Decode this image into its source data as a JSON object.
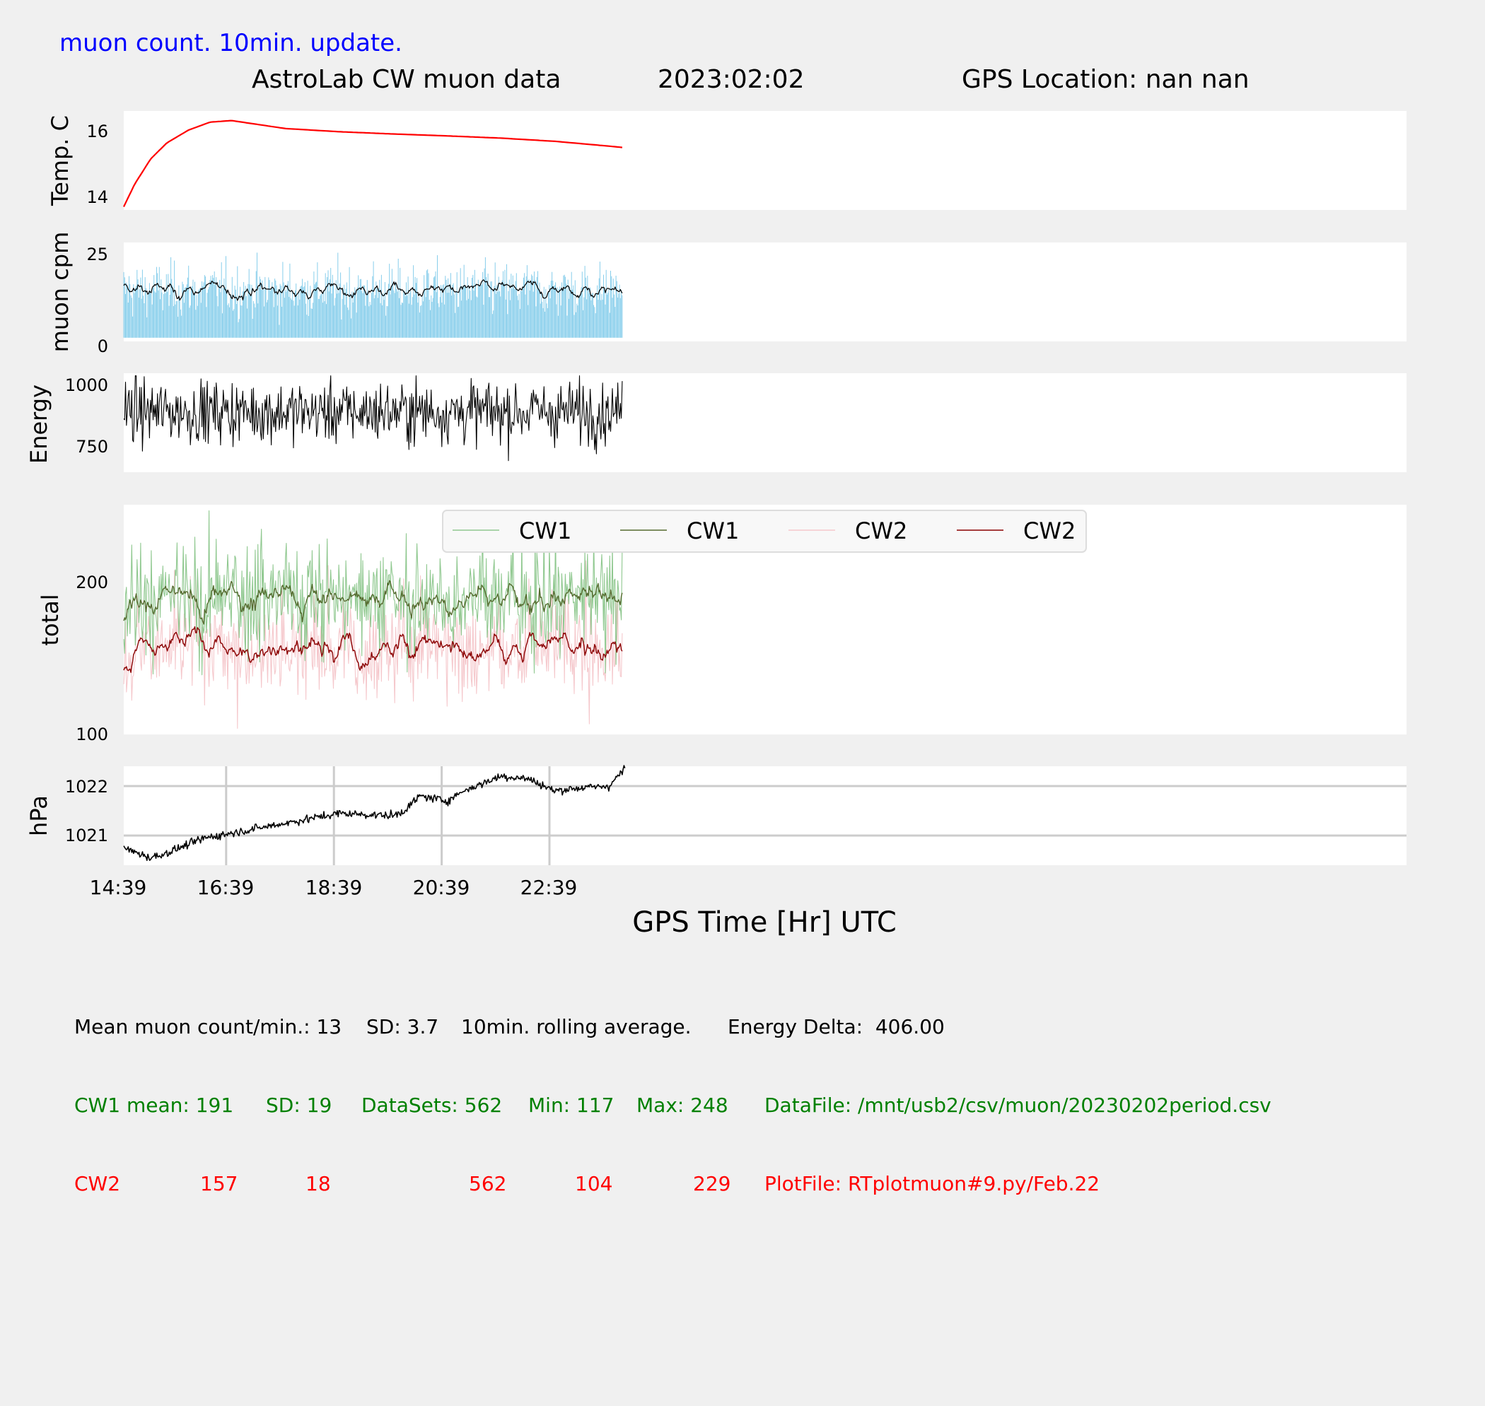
{
  "header": {
    "subtitle": "muon count.  10min. update.",
    "title": "AstroLab CW muon data",
    "date": "2023:02:02",
    "location": "GPS Location: nan   nan"
  },
  "colors": {
    "temp": "#ff0000",
    "cpm_bars": "#87ceeb",
    "cpm_avg": "#000000",
    "energy": "#000000",
    "cw1_raw": "#8fc88f",
    "cw1_avg": "#556b2f",
    "cw2_raw": "#f5c8cc",
    "cw2_avg": "#8b0000",
    "pressure": "#000000",
    "subtitle": "#0000ff",
    "stats_cw1": "#008000",
    "stats_cw2": "#ff0000"
  },
  "chart_data": [
    {
      "type": "line",
      "ylabel": "Temp. C",
      "yticks": [
        "14",
        "16"
      ],
      "ylim": [
        13.8,
        16.9
      ],
      "x_hours": [
        0,
        0.2,
        0.5,
        0.8,
        1.2,
        1.6,
        2.0,
        2.4,
        3,
        3.5,
        4,
        5,
        6,
        7,
        8,
        9,
        9.3
      ],
      "values": [
        13.9,
        14.6,
        15.4,
        15.9,
        16.3,
        16.55,
        16.6,
        16.5,
        16.35,
        16.3,
        16.25,
        16.18,
        16.12,
        16.05,
        15.95,
        15.8,
        15.75
      ],
      "series": [
        {
          "name": "Temp. C"
        }
      ]
    },
    {
      "type": "bar",
      "ylabel": "muon cpm",
      "yticks": [
        "0",
        "25"
      ],
      "ylim": [
        -1,
        26
      ],
      "series": [
        {
          "name": "muon cpm"
        },
        {
          "name": "10min. rolling average"
        }
      ],
      "mean": 13,
      "sd": 3.7,
      "max_observed": 27
    },
    {
      "type": "line",
      "ylabel": "Energy",
      "yticks": [
        "750",
        "1000"
      ],
      "ylim": [
        665,
        1050
      ],
      "series": [
        {
          "name": "Energy"
        }
      ],
      "approx_mean": 900,
      "approx_range": [
        690,
        1040
      ]
    },
    {
      "type": "line",
      "ylabel": "total",
      "yticks": [
        "100",
        "200"
      ],
      "ylim": [
        100,
        252
      ],
      "legend": [
        "CW1",
        "CW1",
        "CW2",
        "CW2"
      ],
      "series": [
        {
          "name": "CW1",
          "style": "raw",
          "mean": 191,
          "sd": 19,
          "min": 117,
          "max": 248
        },
        {
          "name": "CW1",
          "style": "rolling"
        },
        {
          "name": "CW2",
          "style": "raw",
          "mean": 157,
          "sd": 18,
          "min": 104,
          "max": 229
        },
        {
          "name": "CW2",
          "style": "rolling"
        }
      ]
    },
    {
      "type": "line",
      "ylabel": "hPa",
      "yticks": [
        "1021",
        "1022"
      ],
      "ylim": [
        1020.4,
        1022.4
      ],
      "grid": true,
      "x_hours": [
        0,
        0.5,
        0.8,
        1.5,
        2,
        3,
        4,
        5,
        5.2,
        5.5,
        6,
        6.3,
        7,
        7.5,
        8,
        8.3,
        9,
        9.3
      ],
      "values": [
        1020.75,
        1020.55,
        1020.65,
        1020.95,
        1021.05,
        1021.25,
        1021.45,
        1021.4,
        1021.5,
        1021.8,
        1021.7,
        1021.9,
        1022.2,
        1022.15,
        1021.9,
        1021.95,
        1022.0,
        1022.35
      ],
      "series": [
        {
          "name": "hPa"
        }
      ],
      "xlabel": "GPS Time  [Hr] UTC",
      "xticks": [
        "14:39",
        "16:39",
        "18:39",
        "20:39",
        "22:39"
      ]
    }
  ],
  "stats": {
    "line1": [
      "Mean muon count/min.: 13",
      "SD: 3.7",
      "10min. rolling average.",
      "Energy Delta:  406.00"
    ],
    "cw1": [
      "CW1 mean: 191",
      "SD: 19",
      "DataSets: 562",
      "Min: 117",
      "Max: 248",
      "DataFile: /mnt/usb2/csv/muon/20230202period.csv"
    ],
    "cw2": [
      "CW2",
      "157",
      "18",
      "562",
      "104",
      "229",
      "PlotFile: RTplotmuon#9.py/Feb.22"
    ]
  }
}
